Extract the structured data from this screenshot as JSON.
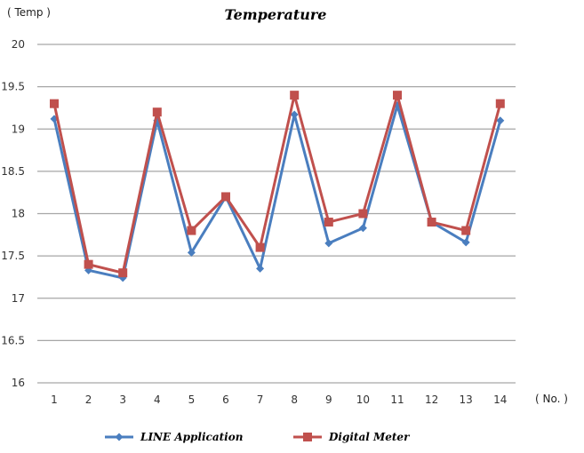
{
  "chart_data": {
    "type": "line",
    "title": "Temperature",
    "ylabel": "( Temp )",
    "xlabel": "( No. )",
    "ylim": [
      16,
      20
    ],
    "y_ticks": [
      16,
      16.5,
      17,
      17.5,
      18,
      18.5,
      19,
      19.5,
      20
    ],
    "y_tick_labels": [
      "16",
      "16.5",
      "17",
      "17.5",
      "18",
      "18.5",
      "19",
      "19.5",
      "20"
    ],
    "categories": [
      "1",
      "2",
      "3",
      "4",
      "5",
      "6",
      "7",
      "8",
      "9",
      "10",
      "11",
      "12",
      "13",
      "14"
    ],
    "grid": true,
    "legend_position": "bottom",
    "series": [
      {
        "name": "LINE Application",
        "color": "#4a7ebf",
        "marker": "diamond",
        "values": [
          19.12,
          17.33,
          17.24,
          19.1,
          17.54,
          18.2,
          17.35,
          19.17,
          17.65,
          17.83,
          19.28,
          17.9,
          17.66,
          19.1
        ]
      },
      {
        "name": "Digital Meter",
        "color": "#c0504d",
        "marker": "square",
        "values": [
          19.3,
          17.4,
          17.3,
          19.2,
          17.8,
          18.2,
          17.6,
          19.4,
          17.9,
          18.0,
          19.4,
          17.9,
          17.8,
          19.3
        ]
      }
    ]
  }
}
